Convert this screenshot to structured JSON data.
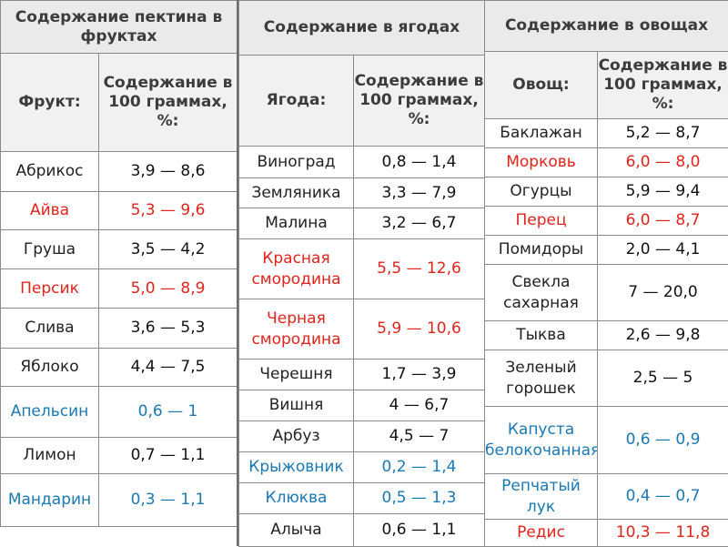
{
  "fruits": {
    "title": "Содержание пектина в фруктах",
    "col_name": "Фрукт:",
    "col_value": "Содержание в 100 граммах, %:",
    "rows": [
      {
        "name": "Абрикос",
        "value": "3,9 — 8,6"
      },
      {
        "name": "Айва",
        "value": "5,3 — 9,6"
      },
      {
        "name": "Груша",
        "value": "3,5 — 4,2"
      },
      {
        "name": "Персик",
        "value": "5,0 — 8,9"
      },
      {
        "name": "Слива",
        "value": "3,6 — 5,3"
      },
      {
        "name": "Яблоко",
        "value": "4,4 — 7,5"
      },
      {
        "name": "Апельсин",
        "value": "0,6 — 1"
      },
      {
        "name": "Лимон",
        "value": "0,7 — 1,1"
      },
      {
        "name": "Мандарин",
        "value": "0,3 — 1,1"
      }
    ]
  },
  "berries": {
    "title": "Содержание в ягодах",
    "col_name": "Ягода:",
    "col_value": "Содержание в 100 граммах, %:",
    "rows": [
      {
        "name": "Виноград",
        "value": "0,8 — 1,4"
      },
      {
        "name": "Земляника",
        "value": "3,3 — 7,9"
      },
      {
        "name": "Малина",
        "value": "3,2 — 6,7"
      },
      {
        "name": "Красная смородина",
        "value": "5,5 — 12,6"
      },
      {
        "name": "Черная смородина",
        "value": "5,9 — 10,6"
      },
      {
        "name": "Черешня",
        "value": "1,7 — 3,9"
      },
      {
        "name": "Вишня",
        "value": "4 — 6,7"
      },
      {
        "name": "Арбуз",
        "value": "4,5 — 7"
      },
      {
        "name": "Крыжовник",
        "value": "0,2 — 1,4"
      },
      {
        "name": "Клюква",
        "value": "0,5 — 1,3"
      },
      {
        "name": "Алыча",
        "value": "0,6 — 1,1"
      }
    ]
  },
  "vegetables": {
    "title": "Содержание в овощах",
    "col_name": "Овощ:",
    "col_value": "Содержание в 100 граммах, %:",
    "rows": [
      {
        "name": "Баклажан",
        "value": "5,2 — 8,7"
      },
      {
        "name": "Морковь",
        "value": "6,0 — 8,0"
      },
      {
        "name": "Огурцы",
        "value": "5,9 — 9,4"
      },
      {
        "name": "Перец",
        "value": "6,0 — 8,7"
      },
      {
        "name": "Помидоры",
        "value": "2,0 — 4,1"
      },
      {
        "name": "Свекла сахарная",
        "value": "7 — 20,0"
      },
      {
        "name": "Тыква",
        "value": "2,6 — 9,8"
      },
      {
        "name": "Зеленый горошек",
        "value": "2,5 — 5"
      },
      {
        "name": "Капуста белокочанная",
        "value": "0,6 — 0,9"
      },
      {
        "name": "Репчатый лук",
        "value": "0,4 — 0,7"
      },
      {
        "name": "Редис",
        "value": "10,3 — 11,8"
      }
    ]
  },
  "colors": {
    "highlight_red": "#e0241b",
    "highlight_blue": "#1a78b4",
    "header_bg": "#eaeaea",
    "border": "#8a8a8a"
  }
}
